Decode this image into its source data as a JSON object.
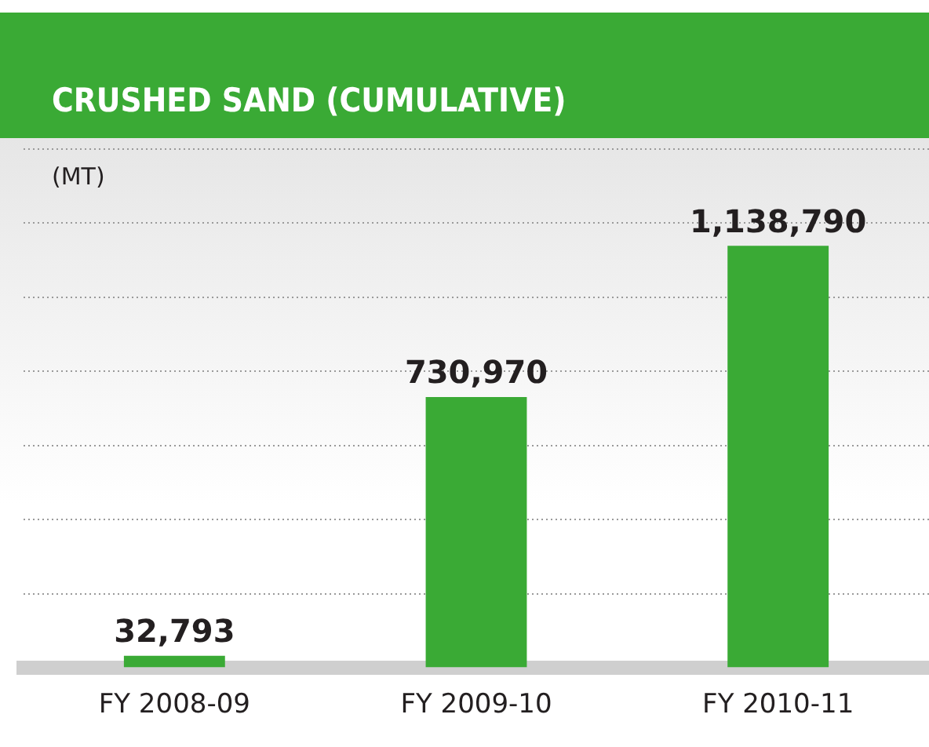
{
  "chart_data": {
    "type": "bar",
    "title": "CRUSHED SAND (CUMULATIVE)",
    "ylabel": "(MT)",
    "categories": [
      "FY 2008-09",
      "FY 2009-10",
      "FY 2010-11"
    ],
    "values": [
      32793,
      730970,
      1138790
    ],
    "color": "#3aaa35",
    "value_labels": [
      "32,793",
      "730,970",
      "1,138,790"
    ],
    "grid": "y",
    "tick_labels": "x",
    "legend": false
  }
}
